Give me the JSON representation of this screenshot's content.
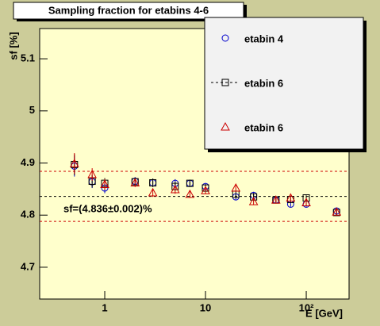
{
  "chart_data": {
    "type": "scatter",
    "title": "Sampling fraction for etabins 4-6",
    "x_label": "E [GeV]",
    "y_label": "sf [%]",
    "annotation": "sf=(4.836±0.002)%",
    "x": [
      0.5,
      0.75,
      1,
      2,
      3,
      5,
      7,
      10,
      20,
      30,
      50,
      70,
      100,
      200
    ],
    "series": [
      {
        "name": "etabin 4",
        "color": "#0000cc",
        "marker": "circle",
        "values": [
          4.894,
          4.864,
          4.852,
          4.865,
          4.862,
          4.861,
          4.861,
          4.855,
          4.835,
          4.838,
          4.829,
          4.821,
          4.821,
          4.808
        ],
        "errors": [
          0.02,
          0.012,
          0.01,
          0.008,
          0.008,
          0.008,
          0.007,
          0.006,
          0.006,
          0.006,
          0.005,
          0.005,
          0.005,
          0.005
        ]
      },
      {
        "name": "etabin 6",
        "color": "#000000",
        "marker": "square",
        "line_style": "dashed",
        "values": [
          4.897,
          4.865,
          4.861,
          4.864,
          4.862,
          4.855,
          4.861,
          4.852,
          4.84,
          4.835,
          4.829,
          4.83,
          4.833,
          4.805
        ],
        "errors": [
          0.02,
          0.012,
          0.01,
          0.008,
          0.008,
          0.008,
          0.007,
          0.006,
          0.006,
          0.006,
          0.005,
          0.005,
          0.005,
          0.005
        ]
      },
      {
        "name": "etabin 6",
        "color": "#cc0000",
        "marker": "triangle",
        "values": [
          4.899,
          4.878,
          4.859,
          4.862,
          4.843,
          4.849,
          4.84,
          4.847,
          4.852,
          4.826,
          4.829,
          4.833,
          4.824,
          4.806
        ],
        "errors": [
          0.02,
          0.012,
          0.01,
          0.008,
          0.008,
          0.008,
          0.007,
          0.006,
          0.006,
          0.006,
          0.005,
          0.005,
          0.005,
          0.005
        ]
      }
    ],
    "reference_lines": [
      4.884,
      4.836,
      4.788
    ],
    "log_x": true,
    "xlim": [
      0.226,
      266
    ],
    "xticks": [
      1,
      10,
      {
        "value": 100,
        "label": "10²"
      }
    ],
    "ylim": [
      4.639,
      5.158
    ],
    "yticks": [
      4.7,
      4.8,
      4.9,
      5,
      5.1
    ]
  }
}
